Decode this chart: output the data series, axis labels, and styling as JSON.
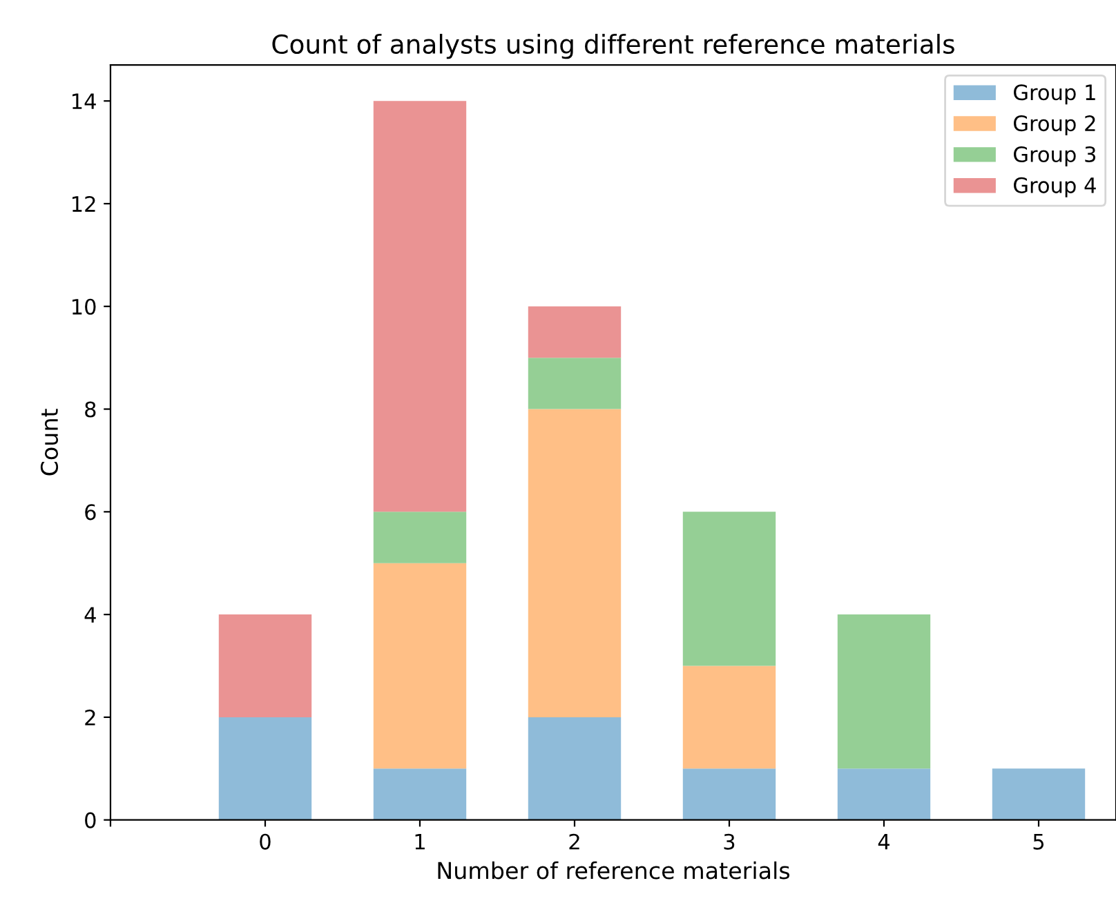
{
  "chart_data": {
    "type": "bar",
    "title": "Count of analysts using different reference materials",
    "xlabel": "Number of reference materials",
    "ylabel": "Count",
    "x": [
      0,
      1,
      2,
      3,
      4,
      5
    ],
    "stacked": true,
    "series": [
      {
        "name": "Group 1",
        "color": "#8fbbd9",
        "values": [
          2,
          1,
          2,
          1,
          1,
          1
        ]
      },
      {
        "name": "Group 2",
        "color": "#ffbf86",
        "values": [
          0,
          4,
          6,
          2,
          0,
          0
        ]
      },
      {
        "name": "Group 3",
        "color": "#95cf95",
        "values": [
          0,
          1,
          1,
          3,
          3,
          0
        ]
      },
      {
        "name": "Group 4",
        "color": "#ea9393",
        "values": [
          2,
          8,
          1,
          0,
          0,
          0
        ]
      }
    ],
    "xlim": [
      -1,
      5.5
    ],
    "xticks": [
      {
        "value": -1,
        "label": null
      },
      0,
      1,
      2,
      3,
      4,
      5
    ],
    "ylim": [
      0,
      14.7
    ],
    "yticks": [
      0,
      2,
      4,
      6,
      8,
      10,
      12,
      14
    ],
    "grid": false,
    "legend": "top right"
  }
}
